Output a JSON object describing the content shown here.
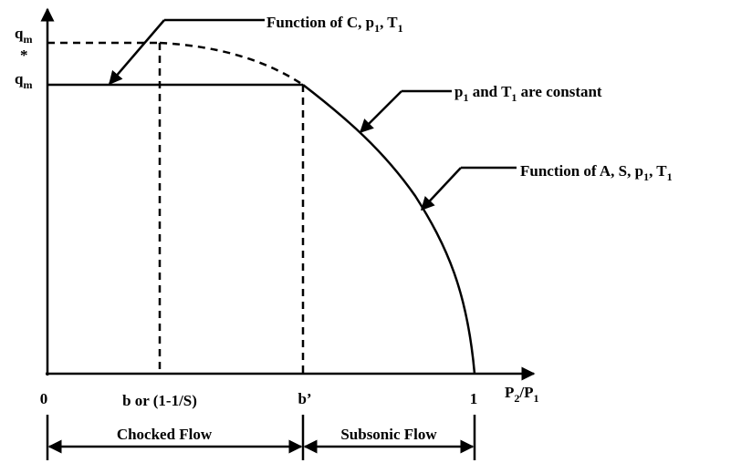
{
  "y_labels": {
    "qm_star": [
      {
        "t": "q"
      },
      {
        "sub": "m"
      }
    ],
    "star": "*",
    "qm": [
      {
        "t": "q"
      },
      {
        "sub": "m"
      }
    ]
  },
  "x_labels": {
    "zero": "0",
    "b": "b or (1-1/S)",
    "b_prime": "b’",
    "one": "1",
    "axis": [
      {
        "t": "P"
      },
      {
        "sub": "2"
      },
      {
        "t": "/P"
      },
      {
        "sub": "1"
      }
    ]
  },
  "annotations": {
    "choked_function": [
      {
        "t": "Function of C, p"
      },
      {
        "sub": "1"
      },
      {
        "t": ", T"
      },
      {
        "sub": "1"
      }
    ],
    "constant": [
      {
        "t": "p"
      },
      {
        "sub": "1"
      },
      {
        "t": " and T"
      },
      {
        "sub": "1"
      },
      {
        "t": " are constant"
      }
    ],
    "subsonic_function": [
      {
        "t": "Function of A, S,  p"
      },
      {
        "sub": "1"
      },
      {
        "t": ", T"
      },
      {
        "sub": "1"
      }
    ]
  },
  "regions": {
    "choked": "Chocked Flow",
    "subsonic": "Subsonic Flow"
  }
}
